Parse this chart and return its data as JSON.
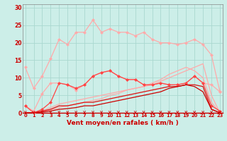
{
  "x": [
    0,
    1,
    2,
    3,
    4,
    5,
    6,
    7,
    8,
    9,
    10,
    11,
    12,
    13,
    14,
    15,
    16,
    17,
    18,
    19,
    20,
    21,
    22,
    23
  ],
  "background_color": "#cceee8",
  "grid_color": "#aad8d0",
  "xlabel": "Vent moyen/en rafales ( km/h )",
  "yticks": [
    0,
    5,
    10,
    15,
    20,
    25,
    30
  ],
  "ylim": [
    0,
    31
  ],
  "xlim": [
    -0.3,
    23.3
  ],
  "lines": [
    {
      "y": [
        13,
        7,
        10.5,
        15.5,
        21,
        19.5,
        23,
        23,
        26.5,
        23,
        24,
        23,
        23,
        22,
        23,
        21,
        20,
        20,
        19.5,
        20,
        21,
        19.5,
        16.5,
        6
      ],
      "color": "#ffaaaa",
      "lw": 0.9,
      "marker": true,
      "markersize": 2.5
    },
    {
      "y": [
        2,
        0.5,
        5.5,
        8.5,
        8.5,
        8,
        6.5,
        8,
        10.5,
        11.5,
        12,
        10.5,
        9.5,
        9.5,
        8,
        8,
        8.5,
        8,
        8,
        8.5,
        10.5,
        8.5,
        8,
        6
      ],
      "color": "#ffaaaa",
      "lw": 0.9,
      "marker": true,
      "markersize": 2.5
    },
    {
      "y": [
        0,
        0,
        0.5,
        1.5,
        2.5,
        3,
        3.5,
        4,
        4.5,
        5,
        5.5,
        6,
        6.5,
        7,
        7.5,
        8,
        9,
        10,
        11,
        12,
        13,
        14,
        5,
        0
      ],
      "color": "#ffaaaa",
      "lw": 0.9,
      "marker": false,
      "markersize": 0
    },
    {
      "y": [
        0,
        0,
        0.3,
        0.8,
        1.5,
        2,
        2.5,
        3,
        3.5,
        4,
        5,
        5.5,
        6.5,
        7,
        7.5,
        8.5,
        9.5,
        11,
        12,
        13,
        12,
        10,
        3,
        0
      ],
      "color": "#ffaaaa",
      "lw": 0.9,
      "marker": false,
      "markersize": 0
    },
    {
      "y": [
        2,
        0,
        1,
        3,
        8.5,
        8,
        7,
        8,
        10.5,
        11.5,
        12,
        10.5,
        9.5,
        9.5,
        8,
        8,
        8.5,
        8,
        8,
        8.5,
        10.5,
        8.5,
        2,
        0.5
      ],
      "color": "#ff4444",
      "lw": 0.9,
      "marker": true,
      "markersize": 2.5
    },
    {
      "y": [
        0,
        0,
        0.5,
        1,
        2,
        2,
        2.5,
        3,
        3,
        3.5,
        4,
        4.5,
        5,
        5.5,
        6,
        6.5,
        7,
        7.5,
        7.5,
        8,
        8,
        7.5,
        1,
        0
      ],
      "color": "#dd1111",
      "lw": 0.9,
      "marker": false,
      "markersize": 0
    },
    {
      "y": [
        0,
        0,
        0.2,
        0.5,
        1,
        1.2,
        1.5,
        2,
        2,
        2.5,
        3,
        3.5,
        4,
        4.5,
        5,
        5.5,
        6,
        7,
        7.5,
        8,
        7.5,
        6,
        1,
        0
      ],
      "color": "#cc0000",
      "lw": 0.9,
      "marker": false,
      "markersize": 0
    }
  ],
  "arrow_color": "#cc0000",
  "tick_color": "#cc0000",
  "label_color": "#cc0000"
}
